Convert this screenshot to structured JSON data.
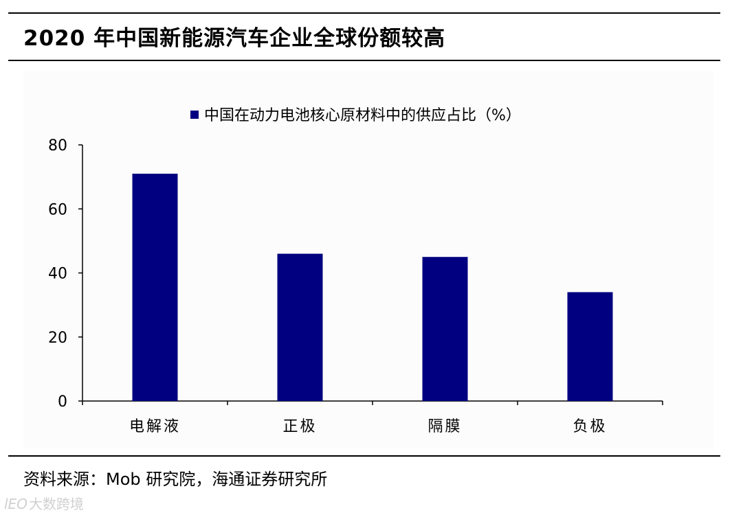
{
  "header": {
    "title": "2020 年中国新能源汽车企业全球份额较高"
  },
  "chart_data": {
    "type": "bar",
    "title": "",
    "legend": [
      "中国在动力电池核心原材料中的供应占比（%）"
    ],
    "legend_position": "top-center",
    "categories": [
      "电解液",
      "正极",
      "隔膜",
      "负极"
    ],
    "series": [
      {
        "name": "中国在动力电池核心原材料中的供应占比（%）",
        "values": [
          71,
          46,
          45,
          34
        ]
      }
    ],
    "ylim": [
      0,
      80
    ],
    "yticks": [
      0,
      20,
      40,
      60,
      80
    ],
    "xlabel": "",
    "ylabel": "",
    "grid": false,
    "bar_color": "#000080"
  },
  "footer": {
    "source": "资料来源：Mob 研究院，海通证券研究所"
  },
  "watermark": {
    "logo": "lEO",
    "text": "大数跨境"
  }
}
